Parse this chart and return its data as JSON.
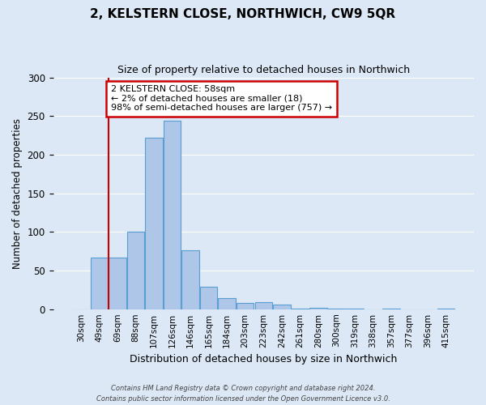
{
  "title": "2, KELSTERN CLOSE, NORTHWICH, CW9 5QR",
  "subtitle": "Size of property relative to detached houses in Northwich",
  "xlabel": "Distribution of detached houses by size in Northwich",
  "ylabel": "Number of detached properties",
  "bar_labels": [
    "30sqm",
    "49sqm",
    "69sqm",
    "88sqm",
    "107sqm",
    "126sqm",
    "146sqm",
    "165sqm",
    "184sqm",
    "203sqm",
    "223sqm",
    "242sqm",
    "261sqm",
    "280sqm",
    "300sqm",
    "319sqm",
    "338sqm",
    "357sqm",
    "377sqm",
    "396sqm",
    "415sqm"
  ],
  "bar_values": [
    0,
    67,
    67,
    100,
    222,
    244,
    76,
    29,
    14,
    8,
    9,
    6,
    1,
    2,
    1,
    1,
    0,
    1,
    0,
    0,
    1
  ],
  "bar_color": "#aec6e8",
  "bar_edge_color": "#5a9fd4",
  "vline_x": 1.5,
  "vline_color": "#cc0000",
  "annotation_text": "2 KELSTERN CLOSE: 58sqm\n← 2% of detached houses are smaller (18)\n98% of semi-detached houses are larger (757) →",
  "annotation_box_color": "#ffffff",
  "annotation_box_edge": "#cc0000",
  "ylim": [
    0,
    300
  ],
  "yticks": [
    0,
    50,
    100,
    150,
    200,
    250,
    300
  ],
  "footer_line1": "Contains HM Land Registry data © Crown copyright and database right 2024.",
  "footer_line2": "Contains public sector information licensed under the Open Government Licence v3.0.",
  "bg_color": "#dce8f5",
  "plot_bg_color": "#dce8f5"
}
